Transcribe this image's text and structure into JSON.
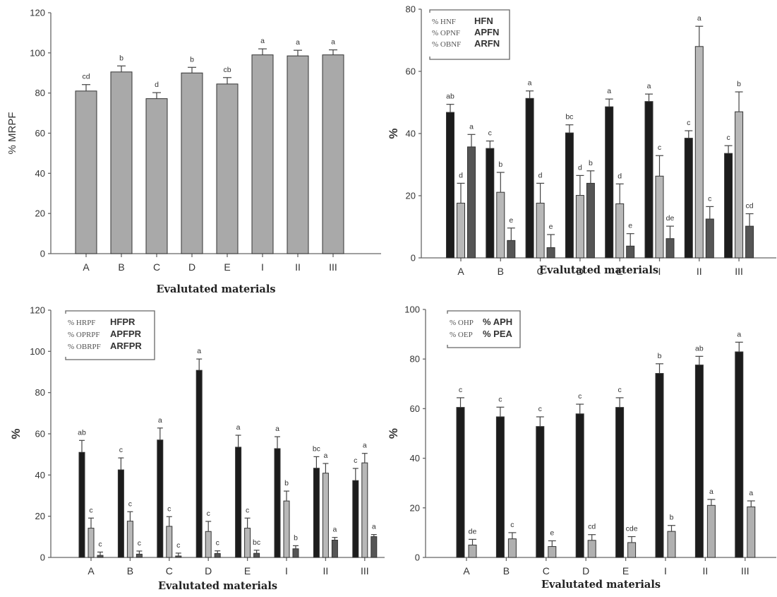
{
  "chart_data": [
    {
      "id": "mrpf",
      "type": "bar",
      "title": "",
      "xlabel": "Evalutated materials",
      "ylabel": "% MRPF",
      "ylim": [
        0,
        120
      ],
      "yticks": [
        0,
        20,
        40,
        60,
        80,
        100,
        120
      ],
      "categories": [
        "A",
        "B",
        "C",
        "D",
        "E",
        "I",
        "II",
        "III"
      ],
      "legend": null,
      "series": [
        {
          "name": "% MRPF",
          "color": "#a9a9a9",
          "values": [
            81,
            90.5,
            77.2,
            90,
            84.5,
            99,
            98.5,
            99
          ],
          "errors": [
            3.2,
            3.0,
            3.0,
            2.8,
            3.2,
            3.0,
            2.8,
            2.5
          ],
          "letters": [
            "cd",
            "b",
            "d",
            "b",
            "cb",
            "a",
            "a",
            "a"
          ]
        }
      ]
    },
    {
      "id": "nf",
      "type": "bar",
      "title": "",
      "xlabel": "Evalutated materials",
      "ylabel": "%",
      "ylim": [
        0,
        80
      ],
      "yticks": [
        0,
        20,
        40,
        60,
        80
      ],
      "categories": [
        "A",
        "B",
        "C",
        "D",
        "E",
        "I",
        "II",
        "III"
      ],
      "legend": {
        "placement": "top-left",
        "rows": [
          {
            "left": "% HNF",
            "right": "HFN"
          },
          {
            "left": "% OPNF",
            "right": "APFN"
          },
          {
            "left": "% OBNF",
            "right": "ARFN"
          }
        ]
      },
      "series": [
        {
          "name": "% HNF",
          "color": "#1c1c1c",
          "values": [
            46.8,
            35.2,
            51.3,
            40.2,
            48.6,
            50.3,
            38.5,
            33.6
          ],
          "errors": [
            2.6,
            2.4,
            2.4,
            2.6,
            2.5,
            2.4,
            2.4,
            2.5
          ],
          "letters": [
            "ab",
            "c",
            "a",
            "bc",
            "a",
            "a",
            "c",
            "c"
          ]
        },
        {
          "name": "% OPNF",
          "color": "#b8b8b8",
          "values": [
            17.6,
            21.1,
            17.6,
            20.1,
            17.4,
            26.3,
            68,
            47
          ],
          "errors": [
            6.4,
            6.4,
            6.4,
            6.4,
            6.4,
            6.6,
            6.5,
            6.4
          ],
          "letters": [
            "d",
            "b",
            "d",
            "d",
            "d",
            "c",
            "a",
            "b"
          ]
        },
        {
          "name": "% OBNF",
          "color": "#555555",
          "values": [
            35.7,
            5.6,
            3.3,
            24,
            3.8,
            6.2,
            12.5,
            10.2
          ],
          "errors": [
            4.0,
            4.0,
            4.2,
            4.0,
            4.0,
            4.0,
            4.0,
            4.0
          ],
          "letters": [
            "a",
            "e",
            "e",
            "b",
            "e",
            "de",
            "c",
            "cd"
          ]
        }
      ]
    },
    {
      "id": "rpf",
      "type": "bar",
      "title": "",
      "xlabel": "Evalutated materials",
      "ylabel": "%",
      "ylim": [
        0,
        120
      ],
      "yticks": [
        0,
        20,
        40,
        60,
        80,
        100,
        120
      ],
      "categories": [
        "A",
        "B",
        "C",
        "D",
        "E",
        "I",
        "II",
        "III"
      ],
      "legend": {
        "placement": "top-left",
        "rows": [
          {
            "left": "% HRPF",
            "right": "HFPR"
          },
          {
            "left": "% OPRPF",
            "right": "APFPR"
          },
          {
            "left": "% OBRPF",
            "right": "ARFPR"
          }
        ]
      },
      "series": [
        {
          "name": "% HRPF",
          "color": "#1c1c1c",
          "values": [
            51,
            42.5,
            57,
            90.8,
            53.5,
            52.8,
            43.3,
            37.3
          ],
          "errors": [
            5.8,
            5.8,
            5.8,
            5.5,
            5.8,
            5.8,
            5.6,
            5.9
          ],
          "letters": [
            "ab",
            "c",
            "a",
            "a",
            "a",
            "a",
            "bc",
            "c"
          ]
        },
        {
          "name": "% OPRPF",
          "color": "#b8b8b8",
          "values": [
            14.2,
            17.6,
            15.1,
            12.6,
            14.2,
            27.4,
            40.9,
            45.9
          ],
          "errors": [
            4.9,
            4.6,
            4.7,
            4.9,
            4.9,
            4.8,
            4.7,
            4.6
          ],
          "letters": [
            "c",
            "c",
            "c",
            "c",
            "c",
            "b",
            "a",
            "a"
          ]
        },
        {
          "name": "% OBRPF",
          "color": "#555555",
          "values": [
            1.0,
            1.6,
            0.7,
            1.9,
            2.0,
            4.2,
            8.4,
            10.1
          ],
          "errors": [
            1.6,
            1.5,
            1.4,
            1.3,
            1.5,
            1.5,
            1.3,
            1.0
          ],
          "letters": [
            "c",
            "c",
            "c",
            "c",
            "bc",
            "b",
            "a",
            "a"
          ]
        }
      ]
    },
    {
      "id": "hp",
      "type": "bar",
      "title": "",
      "xlabel": "Evalutated materials",
      "ylabel": "%",
      "ylim": [
        0,
        100
      ],
      "yticks": [
        0,
        20,
        40,
        60,
        80,
        100
      ],
      "categories": [
        "A",
        "B",
        "C",
        "D",
        "E",
        "I",
        "II",
        "III"
      ],
      "legend": {
        "placement": "top-left",
        "rows": [
          {
            "left": "% OHP",
            "right": "% APH"
          },
          {
            "left": "% OEP",
            "right": "% PEA"
          }
        ]
      },
      "series": [
        {
          "name": "% OHP",
          "color": "#1c1c1c",
          "values": [
            60.5,
            56.7,
            52.8,
            57.9,
            60.5,
            74.2,
            77.6,
            82.9
          ],
          "errors": [
            3.9,
            3.9,
            3.9,
            3.9,
            3.9,
            3.9,
            3.5,
            3.9
          ],
          "letters": [
            "c",
            "c",
            "c",
            "c",
            "c",
            "b",
            "ab",
            "a"
          ]
        },
        {
          "name": "% OEP",
          "color": "#b0b0b0",
          "values": [
            5.0,
            7.5,
            4.4,
            6.9,
            6.0,
            10.5,
            21,
            20.4
          ],
          "errors": [
            2.3,
            2.5,
            2.3,
            2.3,
            2.4,
            2.4,
            2.4,
            2.4
          ],
          "letters": [
            "de",
            "c",
            "e",
            "cd",
            "cde",
            "b",
            "a",
            "a"
          ]
        }
      ]
    }
  ]
}
